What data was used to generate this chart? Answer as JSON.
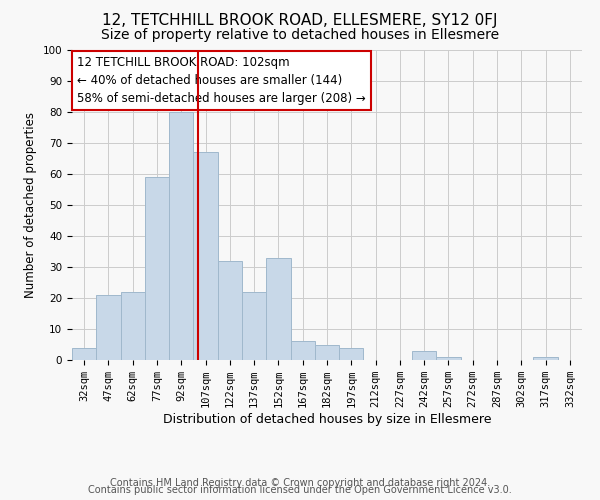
{
  "title": "12, TETCHHILL BROOK ROAD, ELLESMERE, SY12 0FJ",
  "subtitle": "Size of property relative to detached houses in Ellesmere",
  "xlabel": "Distribution of detached houses by size in Ellesmere",
  "ylabel": "Number of detached properties",
  "bar_labels": [
    "32sqm",
    "47sqm",
    "62sqm",
    "77sqm",
    "92sqm",
    "107sqm",
    "122sqm",
    "137sqm",
    "152sqm",
    "167sqm",
    "182sqm",
    "197sqm",
    "212sqm",
    "227sqm",
    "242sqm",
    "257sqm",
    "272sqm",
    "287sqm",
    "302sqm",
    "317sqm",
    "332sqm"
  ],
  "bar_values": [
    4,
    21,
    22,
    59,
    80,
    67,
    32,
    22,
    33,
    6,
    5,
    4,
    0,
    0,
    3,
    1,
    0,
    0,
    0,
    1,
    0
  ],
  "bar_color": "#c8d8e8",
  "bar_edge_color": "#a0b8cc",
  "vline_color": "#cc0000",
  "vline_x_index": 4.67,
  "ylim": [
    0,
    100
  ],
  "yticks": [
    0,
    10,
    20,
    30,
    40,
    50,
    60,
    70,
    80,
    90,
    100
  ],
  "annotation_text": "12 TETCHILL BROOK ROAD: 102sqm\n← 40% of detached houses are smaller (144)\n58% of semi-detached houses are larger (208) →",
  "annotation_box_color": "#ffffff",
  "annotation_box_edge": "#cc0000",
  "footer1": "Contains HM Land Registry data © Crown copyright and database right 2024.",
  "footer2": "Contains public sector information licensed under the Open Government Licence v3.0.",
  "title_fontsize": 11,
  "subtitle_fontsize": 10,
  "xlabel_fontsize": 9,
  "ylabel_fontsize": 8.5,
  "tick_fontsize": 7.5,
  "annotation_fontsize": 8.5,
  "footer_fontsize": 7
}
